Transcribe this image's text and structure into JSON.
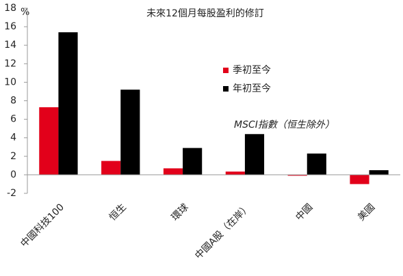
{
  "chart_data": {
    "type": "bar",
    "title": "未來12個月每股盈利的修訂",
    "y_label": "%",
    "annotation": "MSCI指數（恒生除外）",
    "categories": [
      "中國科技100",
      "恒生",
      "環球",
      "中國A股（在岸）",
      "中國",
      "美國"
    ],
    "series": [
      {
        "name": "季初至今",
        "color": "#e2001a",
        "values": [
          7.3,
          1.5,
          0.7,
          0.35,
          -0.1,
          -1.0
        ]
      },
      {
        "name": "年初至今",
        "color": "#000000",
        "values": [
          15.4,
          9.2,
          2.9,
          4.4,
          2.3,
          0.5
        ]
      }
    ],
    "ylim": [
      -2,
      18
    ],
    "yticks": [
      -2,
      0,
      2,
      4,
      6,
      8,
      10,
      12,
      14,
      16,
      18
    ],
    "grid": false
  }
}
